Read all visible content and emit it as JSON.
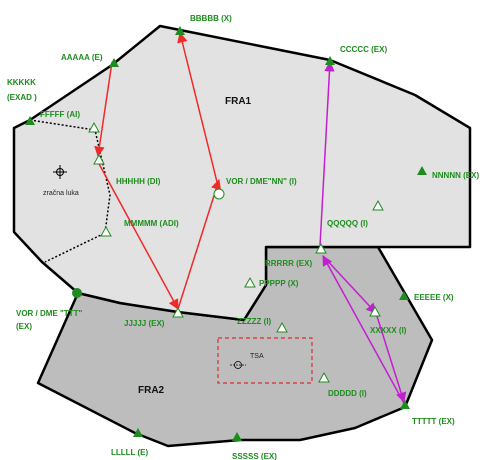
{
  "zones": {
    "fra1": "FRA1",
    "fra2": "FRA2",
    "tsa": "TSA",
    "airport": "zračna luka"
  },
  "points": {
    "bbbbb": "BBBBB (X)",
    "aaaaa": "AAAAA (E)",
    "ccccc": "CCCCC (EX)",
    "kkkkk_1": "KKKKK",
    "kkkkk_2": "(EXAD )",
    "fffff": "FFFFF (AI)",
    "hhhhh": "HHHHH (DI)",
    "nnnnn": "NNNNN (EX)",
    "vor_nn": "VOR / DME\"NN\" (I)",
    "mmmmm": "MMMMM (ADI)",
    "qqqqq": "QQQQQ (I)",
    "rrrrr": "RRRRR (EX)",
    "ppppp": "PPPPP (X)",
    "eeeee": "EEEEE (X)",
    "vor_ttt_1": "VOR / DME \"TTT\"",
    "vor_ttt_2": "(EX)",
    "jjjjj": "JJJJJ (EX)",
    "zzzzz": "ZZZZZ (I)",
    "xxxxx": "XXXXX (I)",
    "ddddd": "DDDDD (I)",
    "ttttt": "TTTTT (EX)",
    "lllll": "LLLLL (E)",
    "sssss": "SSSSS (EX)"
  },
  "colors": {
    "fra1_fill": "#e2e2e2",
    "fra2_fill": "#bdbdbd",
    "label_green": "#1e8c1e",
    "route_red": "#ee2a2a",
    "route_magenta": "#c21fd0",
    "tsa_border": "#d43030"
  }
}
